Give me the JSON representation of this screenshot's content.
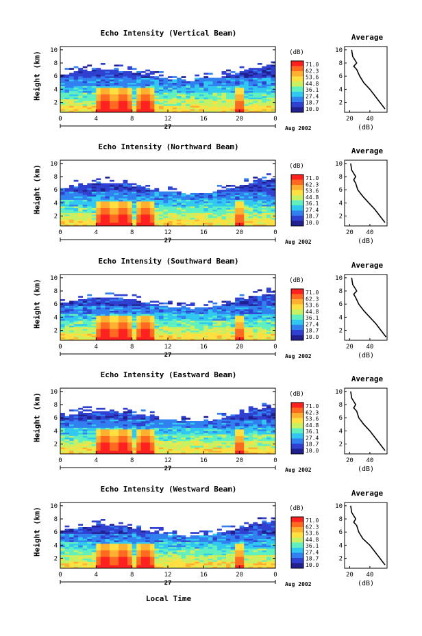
{
  "colorbar": {
    "unit": "(dB)",
    "ticks": [
      "71.0",
      "62.3",
      "53.6",
      "44.8",
      "36.1",
      "27.4",
      "18.7",
      "10.0"
    ],
    "colors": [
      "#ff2020",
      "#ff6a20",
      "#ffb030",
      "#ffe040",
      "#c8f060",
      "#60f0c0",
      "#30c8f0",
      "#3080f0",
      "#3040d0",
      "#202090"
    ]
  },
  "x_axis": {
    "ticks": [
      "0",
      "4",
      "8",
      "12",
      "16",
      "20",
      "0"
    ],
    "day_label": "27",
    "month_label": "Aug 2002",
    "title": "Local Time"
  },
  "y_axis": {
    "label": "Height (km)",
    "ticks": [
      "2",
      "4",
      "6",
      "8",
      "10"
    ]
  },
  "average_panel": {
    "title": "Average",
    "xlabel": "(dB)",
    "xticks": [
      "20",
      "40"
    ]
  },
  "chart_data": [
    {
      "type": "heatmap",
      "title": "Echo Intensity (Vertical Beam)",
      "xlabel": "",
      "ylabel": "Height (km)",
      "xlim": [
        0,
        24
      ],
      "ylim": [
        0.5,
        10.5
      ],
      "zlim": [
        10.0,
        71.0
      ],
      "strong_echo_hours": [
        5,
        7,
        9.5,
        20
      ],
      "average_profile": {
        "height_km": [
          1,
          2,
          3,
          4,
          5,
          6,
          7,
          7.5,
          8,
          9,
          10
        ],
        "db": [
          55,
          50,
          45,
          40,
          34,
          30,
          27,
          24,
          27,
          23,
          22
        ]
      }
    },
    {
      "type": "heatmap",
      "title": "Echo Intensity (Northward Beam)",
      "xlabel": "",
      "ylabel": "Height (km)",
      "xlim": [
        0,
        24
      ],
      "ylim": [
        0.5,
        10.5
      ],
      "zlim": [
        10.0,
        71.0
      ],
      "strong_echo_hours": [
        5,
        7,
        9.5,
        20
      ],
      "average_profile": {
        "height_km": [
          1,
          2,
          3,
          4,
          5,
          6,
          7,
          7.5,
          8,
          9,
          10
        ],
        "db": [
          55,
          50,
          45,
          39,
          33,
          28,
          26,
          24,
          26,
          22,
          21
        ]
      }
    },
    {
      "type": "heatmap",
      "title": "Echo Intensity (Southward Beam)",
      "xlabel": "",
      "ylabel": "Height (km)",
      "xlim": [
        0,
        24
      ],
      "ylim": [
        0.5,
        10.5
      ],
      "zlim": [
        10.0,
        71.0
      ],
      "strong_echo_hours": [
        5,
        7,
        9.5,
        20
      ],
      "average_profile": {
        "height_km": [
          1,
          2,
          3,
          4,
          5,
          6,
          7,
          7.5,
          8,
          9,
          10
        ],
        "db": [
          56,
          51,
          46,
          40,
          34,
          29,
          26,
          24,
          27,
          23,
          22
        ]
      }
    },
    {
      "type": "heatmap",
      "title": "Echo Intensity (Eastward Beam)",
      "xlabel": "",
      "ylabel": "Height (km)",
      "xlim": [
        0,
        24
      ],
      "ylim": [
        0.5,
        10.5
      ],
      "zlim": [
        10.0,
        71.0
      ],
      "strong_echo_hours": [
        5,
        7,
        9.5,
        20
      ],
      "average_profile": {
        "height_km": [
          1,
          2,
          3,
          4,
          5,
          6,
          7,
          7.5,
          8,
          9,
          10
        ],
        "db": [
          55,
          50,
          45,
          40,
          34,
          29,
          27,
          24,
          26,
          22,
          21
        ]
      }
    },
    {
      "type": "heatmap",
      "title": "Echo Intensity (Westward Beam)",
      "xlabel": "Local Time",
      "ylabel": "Height (km)",
      "xlim": [
        0,
        24
      ],
      "ylim": [
        0.5,
        10.5
      ],
      "zlim": [
        10.0,
        71.0
      ],
      "strong_echo_hours": [
        5,
        7,
        9.5,
        20
      ],
      "average_profile": {
        "height_km": [
          1,
          2,
          3,
          4,
          5,
          6,
          7,
          7.5,
          8,
          9,
          10
        ],
        "db": [
          55,
          50,
          45,
          40,
          33,
          29,
          27,
          24,
          26,
          22,
          21
        ]
      }
    }
  ]
}
